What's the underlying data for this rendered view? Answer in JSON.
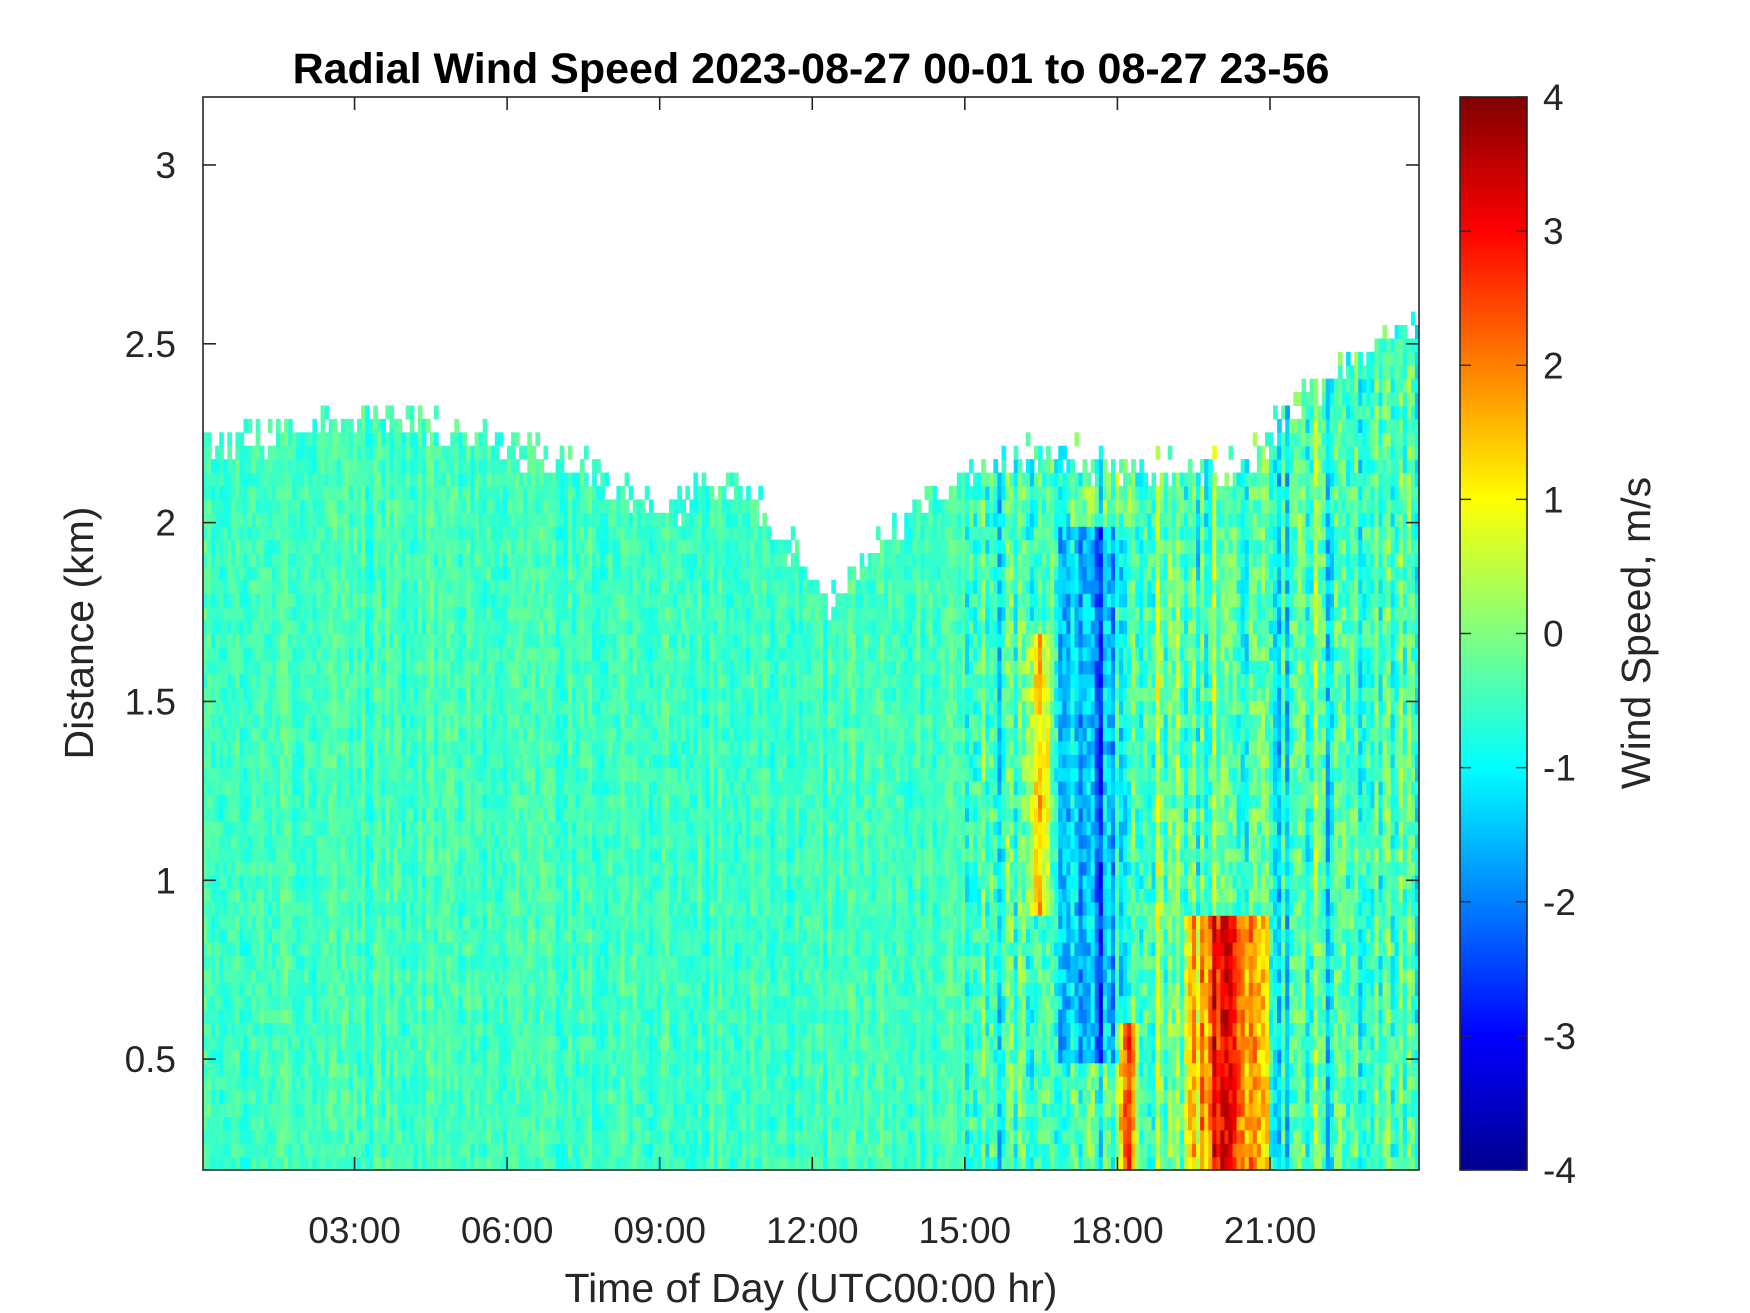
{
  "chart_data": {
    "type": "heatmap",
    "title": "Radial Wind Speed 2023-08-27 00-01 to 08-27 23-56",
    "xlabel": "Time of Day (UTC00:00 hr)",
    "ylabel": "Distance (km)",
    "x_tick_labels": [
      "03:00",
      "06:00",
      "09:00",
      "12:00",
      "15:00",
      "18:00",
      "21:00"
    ],
    "x_tick_values": [
      3,
      6,
      9,
      12,
      15,
      18,
      21
    ],
    "xlim": [
      0.02,
      23.93
    ],
    "y_tick_labels": [
      "0.5",
      "1",
      "1.5",
      "2",
      "2.5",
      "3"
    ],
    "y_tick_values": [
      0.5,
      1,
      1.5,
      2,
      2.5,
      3
    ],
    "ylim": [
      0.19,
      3.19
    ],
    "grid": false,
    "colorbar": {
      "label": "Wind Speed, m/s",
      "colormap": "jet",
      "range": [
        -4,
        4
      ],
      "tick_labels": [
        "4",
        "3",
        "2",
        "1",
        "0",
        "-1",
        "-2",
        "-3",
        "-4"
      ],
      "tick_values": [
        4,
        3,
        2,
        1,
        0,
        -1,
        -2,
        -3,
        -4
      ]
    },
    "data_top_km": [
      {
        "hour": 0.0,
        "km": 2.2
      },
      {
        "hour": 1.5,
        "km": 2.25
      },
      {
        "hour": 3.0,
        "km": 2.3
      },
      {
        "hour": 4.5,
        "km": 2.28
      },
      {
        "hour": 6.0,
        "km": 2.22
      },
      {
        "hour": 7.5,
        "km": 2.15
      },
      {
        "hour": 9.0,
        "km": 2.05
      },
      {
        "hour": 10.5,
        "km": 2.1
      },
      {
        "hour": 11.5,
        "km": 1.95
      },
      {
        "hour": 12.3,
        "km": 1.78
      },
      {
        "hour": 13.5,
        "km": 1.95
      },
      {
        "hour": 15.0,
        "km": 2.15
      },
      {
        "hour": 16.5,
        "km": 2.2
      },
      {
        "hour": 18.0,
        "km": 2.15
      },
      {
        "hour": 20.5,
        "km": 2.15
      },
      {
        "hour": 21.5,
        "km": 2.35
      },
      {
        "hour": 23.93,
        "km": 2.55
      }
    ],
    "regions": [
      {
        "hours": [
          0.0,
          14.8
        ],
        "km": [
          0.19,
          2.3
        ],
        "speed_ms": -0.5,
        "description_value": "mostly -1 to 0"
      },
      {
        "hours": [
          16.2,
          16.7
        ],
        "km": [
          0.9,
          1.7
        ],
        "speed_ms": 1.5
      },
      {
        "hours": [
          16.8,
          18.3
        ],
        "km": [
          0.5,
          2.0
        ],
        "speed_ms": -2.0
      },
      {
        "hours": [
          18.0,
          18.4
        ],
        "km": [
          0.19,
          0.6
        ],
        "speed_ms": 2.5
      },
      {
        "hours": [
          19.3,
          21.0
        ],
        "km": [
          0.19,
          0.9
        ],
        "speed_ms": 3.0
      }
    ]
  }
}
